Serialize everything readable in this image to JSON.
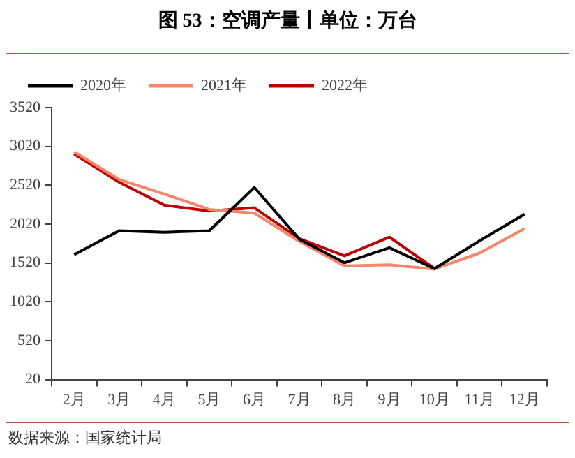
{
  "chart_data": {
    "type": "line",
    "title": "图 53：空调产量丨单位：万台",
    "categories": [
      "2月",
      "3月",
      "4月",
      "5月",
      "6月",
      "7月",
      "8月",
      "9月",
      "10月",
      "11月",
      "12月"
    ],
    "series": [
      {
        "name": "2020年",
        "color": "#000000",
        "values": [
          1626,
          1935,
          1914,
          1935,
          2491,
          1825,
          1523,
          1715,
          1447,
          1804,
          2148
        ]
      },
      {
        "name": "2021年",
        "color": "#f4866a",
        "values": [
          2950,
          2594,
          2408,
          2209,
          2161,
          1797,
          1482,
          1496,
          1441,
          1647,
          1962
        ]
      },
      {
        "name": "2022年",
        "color": "#c00000",
        "values": [
          2923,
          2559,
          2264,
          2189,
          2230,
          1832,
          1612,
          1852,
          1447,
          null,
          null
        ]
      }
    ],
    "ylim": [
      20,
      3520
    ],
    "yticks": [
      20,
      520,
      1020,
      1520,
      2020,
      2520,
      3020,
      3520
    ],
    "grid": false,
    "legend": "top",
    "marker": "none",
    "line_style": "solid",
    "annotations": [
      "数据来源：国家统计局"
    ]
  }
}
